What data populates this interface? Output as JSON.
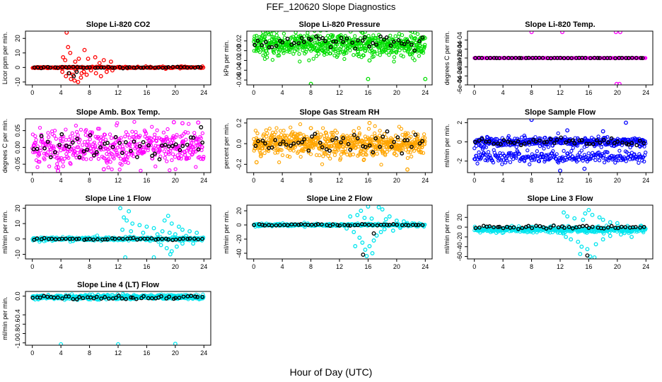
{
  "title": "FEF_120620  Slope Diagnostics",
  "xlabel": "Hour of Day (UTC)",
  "chart_data": [
    {
      "type": "scatter",
      "title": "Slope Li-820 CO2",
      "ylabel": "Licor ppm per min.",
      "xlim": [
        0,
        24
      ],
      "ylim": [
        -12,
        25
      ],
      "xticks": [
        0,
        4,
        8,
        12,
        16,
        20,
        24
      ],
      "yticks": [
        -10,
        0,
        10,
        20
      ],
      "yticklabels": [
        "-10",
        "0",
        "10",
        "20"
      ],
      "grid": false,
      "series": [
        {
          "name": "all",
          "color": "#ff0000",
          "baseline": 0,
          "spread": 0.3,
          "density": 300,
          "outliers": [
            [
              4.8,
              24
            ],
            [
              5,
              14
            ],
            [
              5.3,
              10
            ],
            [
              4.3,
              7
            ],
            [
              4.6,
              5
            ],
            [
              6,
              4
            ],
            [
              6.5,
              6
            ],
            [
              7.3,
              12
            ],
            [
              7.8,
              6
            ],
            [
              8.8,
              7
            ],
            [
              9.4,
              3
            ],
            [
              10,
              5
            ],
            [
              11,
              4
            ],
            [
              4.2,
              -3
            ],
            [
              4.7,
              -6
            ],
            [
              5.2,
              -4
            ],
            [
              5.4,
              -8
            ],
            [
              5.7,
              -5
            ],
            [
              6.1,
              -2
            ],
            [
              6.4,
              -10
            ],
            [
              6.8,
              -7
            ],
            [
              7.2,
              -3
            ],
            [
              7.6,
              -5
            ],
            [
              8.2,
              -2
            ],
            [
              8.9,
              -4
            ],
            [
              9.6,
              -6
            ],
            [
              10.4,
              -3
            ],
            [
              11.2,
              -2
            ],
            [
              5.9,
              -9
            ],
            [
              6.9,
              -4
            ]
          ]
        },
        {
          "name": "hourly",
          "color": "#000000",
          "baseline": 0,
          "spread": 0.2,
          "density": 48,
          "outliers": [
            [
              5.1,
              -4
            ],
            [
              5.8,
              -6
            ],
            [
              6.2,
              -3
            ],
            [
              20.3,
              0.4
            ]
          ]
        }
      ]
    },
    {
      "type": "scatter",
      "title": "Slope Li-820 Pressure",
      "ylabel": "kPa per min.",
      "xlim": [
        0,
        24
      ],
      "ylim": [
        -0.07,
        0.04
      ],
      "xticks": [
        0,
        4,
        8,
        12,
        16,
        20,
        24
      ],
      "yticks": [
        -0.06,
        -0.04,
        -0.02,
        0.0,
        0.02
      ],
      "yticklabels": [
        "-0.06",
        "-0.04",
        "-0.02",
        "0.00",
        "0.02"
      ],
      "grid": false,
      "series": [
        {
          "name": "all",
          "color": "#00dd00",
          "baseline": 0.012,
          "spread": 0.012,
          "density": 650,
          "outliers": [
            [
              8,
              -0.068
            ],
            [
              16,
              -0.058
            ],
            [
              24,
              -0.058
            ],
            [
              16.2,
              -0.02
            ]
          ]
        },
        {
          "name": "hourly",
          "color": "#000000",
          "baseline": 0.015,
          "spread": 0.008,
          "density": 48,
          "outliers": []
        }
      ]
    },
    {
      "type": "scatter",
      "title": "Slope Li-820 Temp.",
      "ylabel": "degrees C per min.",
      "xlim": [
        0,
        24
      ],
      "ylim": [
        -0.0006,
        0.0006
      ],
      "xticks": [
        0,
        4,
        8,
        12,
        16,
        20,
        24
      ],
      "yticks": [
        -0.0006,
        -0.0004,
        -0.0002,
        0,
        0.0002,
        0.0004
      ],
      "yticklabels": [
        "-6e-04",
        "-4e-04",
        "-2e-04",
        "0e+00",
        "2e-04",
        "4e-04"
      ],
      "grid": false,
      "series": [
        {
          "name": "all",
          "color": "#ff00ff",
          "baseline": 0,
          "spread": 5e-06,
          "density": 300,
          "outliers": [
            [
              8,
              0.00058
            ],
            [
              12.3,
              0.00058
            ],
            [
              19.8,
              0.00058
            ],
            [
              20.4,
              0.00058
            ],
            [
              19.9,
              -0.00058
            ],
            [
              20.3,
              -0.00058
            ],
            [
              0.2,
              0
            ],
            [
              20.2,
              0
            ]
          ]
        },
        {
          "name": "hourly",
          "color": "#000000",
          "baseline": 0,
          "spread": 2e-06,
          "density": 48,
          "outliers": []
        }
      ]
    },
    {
      "type": "scatter",
      "title": "Slope Amb. Box Temp.",
      "ylabel": "degrees C per min.",
      "xlim": [
        0,
        24
      ],
      "ylim": [
        -0.075,
        0.085
      ],
      "xticks": [
        0,
        4,
        8,
        12,
        16,
        20,
        24
      ],
      "yticks": [
        -0.05,
        0,
        0.05
      ],
      "yticklabels": [
        "-0.05",
        "0.00",
        "0.05"
      ],
      "grid": false,
      "series": [
        {
          "name": "all",
          "color": "#ff00ff",
          "baseline": 0,
          "spread": 0.028,
          "density": 480,
          "outliers": [
            [
              19.8,
              0.075
            ],
            [
              21,
              0.072
            ],
            [
              23.2,
              0.074
            ],
            [
              3.6,
              -0.07
            ],
            [
              10,
              -0.065
            ]
          ]
        },
        {
          "name": "hourly",
          "color": "#000000",
          "baseline": 0,
          "spread": 0.02,
          "density": 48,
          "outliers": [
            [
              23.6,
              0.06
            ]
          ]
        }
      ]
    },
    {
      "type": "scatter",
      "title": "Slope Gas Stream RH",
      "ylabel": "percent per min.",
      "xlim": [
        0,
        24
      ],
      "ylim": [
        -0.28,
        0.24
      ],
      "xticks": [
        0,
        4,
        8,
        12,
        16,
        20,
        24
      ],
      "yticks": [
        -0.2,
        0,
        0.2
      ],
      "yticklabels": [
        "-0.2",
        "0.0",
        "0.2"
      ],
      "grid": false,
      "series": [
        {
          "name": "all",
          "color": "#ffa500",
          "baseline": 0,
          "spread": 0.06,
          "density": 650,
          "outliers": [
            [
              0.4,
              -0.18
            ],
            [
              1,
              -0.12
            ],
            [
              16.2,
              0.2
            ],
            [
              21.5,
              -0.25
            ],
            [
              8,
              0.15
            ],
            [
              14,
              0.12
            ]
          ]
        },
        {
          "name": "hourly",
          "color": "#000000",
          "baseline": 0,
          "spread": 0.045,
          "density": 48,
          "outliers": []
        }
      ]
    },
    {
      "type": "scatter",
      "title": "Slope Sample Flow",
      "ylabel": "ml/min per min.",
      "xlim": [
        0,
        24
      ],
      "ylim": [
        -3.2,
        2.4
      ],
      "xticks": [
        0,
        4,
        8,
        12,
        16,
        20,
        24
      ],
      "yticks": [
        -2,
        0,
        2
      ],
      "yticklabels": [
        "-2",
        "0",
        "2"
      ],
      "grid": false,
      "series": [
        {
          "name": "all",
          "color": "#0000ff",
          "baseline": 0,
          "spread": 0.25,
          "density": 400,
          "outliers": [
            [
              8,
              2.3
            ],
            [
              21.2,
              2
            ],
            [
              12,
              -3
            ],
            [
              15.4,
              -2.8
            ],
            [
              13,
              1.2
            ],
            [
              18,
              1.1
            ]
          ]
        },
        {
          "name": "all_low_band",
          "color": "#0000ff",
          "baseline": -1.6,
          "spread": 0.3,
          "density": 250,
          "outliers": []
        },
        {
          "name": "hourly",
          "color": "#000000",
          "baseline": 0,
          "spread": 0.25,
          "density": 48,
          "outliers": []
        }
      ]
    },
    {
      "type": "scatter",
      "title": "Slope Line 1 Flow",
      "ylabel": "ml/min per min.",
      "xlim": [
        0,
        24
      ],
      "ylim": [
        -13,
        22
      ],
      "xticks": [
        0,
        4,
        8,
        12,
        16,
        20,
        24
      ],
      "yticks": [
        -10,
        0,
        10,
        20
      ],
      "yticklabels": [
        "-10",
        "0",
        "10",
        "20"
      ],
      "grid": false,
      "series": [
        {
          "name": "all",
          "color": "#00e5ee",
          "baseline": 0,
          "spread": 0.6,
          "density": 350,
          "outliers": [
            [
              12.3,
              20
            ],
            [
              13.5,
              18
            ],
            [
              12.8,
              14
            ],
            [
              13.2,
              12
            ],
            [
              14,
              10
            ],
            [
              15,
              9
            ],
            [
              16,
              8
            ],
            [
              17,
              7
            ],
            [
              18.5,
              12
            ],
            [
              19,
              15
            ],
            [
              19.5,
              10
            ],
            [
              20.5,
              8
            ],
            [
              21,
              6
            ],
            [
              22,
              5
            ],
            [
              23,
              4
            ],
            [
              12.6,
              6
            ],
            [
              13.8,
              5
            ],
            [
              15.5,
              4
            ],
            [
              17.5,
              3
            ],
            [
              18.2,
              5
            ],
            [
              19.2,
              4
            ],
            [
              20,
              3
            ],
            [
              21.5,
              2
            ],
            [
              18,
              -4
            ],
            [
              18.8,
              -6
            ],
            [
              19.5,
              -8
            ],
            [
              20.2,
              -5
            ],
            [
              21,
              -3
            ],
            [
              13,
              -12
            ],
            [
              17,
              -12
            ],
            [
              19.3,
              -10
            ],
            [
              22.5,
              -3
            ]
          ]
        },
        {
          "name": "hourly",
          "color": "#000000",
          "baseline": 0,
          "spread": 0.3,
          "density": 48,
          "outliers": []
        }
      ]
    },
    {
      "type": "scatter",
      "title": "Slope Line 2 Flow",
      "ylabel": "ml/min per min.",
      "xlim": [
        0,
        24
      ],
      "ylim": [
        -48,
        28
      ],
      "xticks": [
        0,
        4,
        8,
        12,
        16,
        20,
        24
      ],
      "yticks": [
        -40,
        -20,
        0,
        20
      ],
      "yticklabels": [
        "-40",
        "-20",
        "0",
        "20"
      ],
      "grid": false,
      "series": [
        {
          "name": "all",
          "color": "#00e5ee",
          "baseline": 0,
          "spread": 1,
          "density": 350,
          "outliers": [
            [
              16,
              26
            ],
            [
              17.5,
              25
            ],
            [
              18,
              22
            ],
            [
              15,
              20
            ],
            [
              14.5,
              14
            ],
            [
              13.5,
              12
            ],
            [
              15.5,
              10
            ],
            [
              16.5,
              9
            ],
            [
              18.5,
              8
            ],
            [
              19,
              12
            ],
            [
              20,
              6
            ],
            [
              21,
              5
            ],
            [
              13,
              -5
            ],
            [
              14,
              -10
            ],
            [
              14.8,
              -18
            ],
            [
              15.2,
              -25
            ],
            [
              15.6,
              -35
            ],
            [
              16.2,
              -30
            ],
            [
              16.8,
              -22
            ],
            [
              17.2,
              -15
            ],
            [
              17.8,
              -10
            ],
            [
              18.3,
              -6
            ],
            [
              19.5,
              -8
            ],
            [
              20.5,
              -4
            ],
            [
              15.8,
              -44
            ],
            [
              14.2,
              -30
            ],
            [
              16.6,
              -40
            ]
          ]
        },
        {
          "name": "hourly",
          "color": "#000000",
          "baseline": 0,
          "spread": 0.6,
          "density": 48,
          "outliers": [
            [
              15.3,
              -42
            ],
            [
              16.8,
              -12
            ]
          ]
        }
      ]
    },
    {
      "type": "scatter",
      "title": "Slope Line 3 Flow",
      "ylabel": "ml/min per min.",
      "xlim": [
        0,
        24
      ],
      "ylim": [
        -65,
        45
      ],
      "xticks": [
        0,
        4,
        8,
        12,
        16,
        20,
        24
      ],
      "yticks": [
        -60,
        -40,
        -20,
        0,
        20
      ],
      "yticklabels": [
        "-60",
        "-40",
        "-20",
        "0",
        "20"
      ],
      "grid": false,
      "series": [
        {
          "name": "all",
          "color": "#00e5ee",
          "baseline": -5,
          "spread": 3,
          "density": 450,
          "outliers": [
            [
              12.5,
              30
            ],
            [
              13,
              22
            ],
            [
              14,
              18
            ],
            [
              15.5,
              28
            ],
            [
              16,
              35
            ],
            [
              16.5,
              25
            ],
            [
              17.5,
              20
            ],
            [
              18,
              15
            ],
            [
              19,
              10
            ],
            [
              20,
              8
            ],
            [
              12.8,
              -20
            ],
            [
              13.5,
              -25
            ],
            [
              14.5,
              -30
            ],
            [
              15,
              -40
            ],
            [
              15.8,
              -45
            ],
            [
              16.2,
              -60
            ],
            [
              17,
              -35
            ],
            [
              18,
              -25
            ],
            [
              19,
              -18
            ],
            [
              20.5,
              -15
            ],
            [
              21,
              -12
            ],
            [
              22,
              -20
            ],
            [
              14.8,
              -55
            ],
            [
              16.8,
              -62
            ],
            [
              15.2,
              15
            ]
          ]
        },
        {
          "name": "hourly",
          "color": "#000000",
          "baseline": 0,
          "spread": 1.5,
          "density": 48,
          "outliers": [
            [
              15.8,
              -58
            ]
          ]
        }
      ]
    },
    {
      "type": "scatter",
      "title": "Slope Line 4 (LT) Flow",
      "ylabel": "ml/min per min.",
      "xlim": [
        0,
        24
      ],
      "ylim": [
        -1.05,
        0.1
      ],
      "xticks": [
        0,
        4,
        8,
        12,
        16,
        20,
        24
      ],
      "yticks": [
        -1.0,
        -0.8,
        -0.6,
        -0.4,
        0.0
      ],
      "yticklabels": [
        "-1.0",
        "-0.8",
        "-0.6",
        "-0.4",
        "0.0"
      ],
      "grid": false,
      "series": [
        {
          "name": "all",
          "color": "#00e5ee",
          "baseline": -0.02,
          "spread": 0.025,
          "density": 500,
          "outliers": [
            [
              4,
              -1.03
            ],
            [
              12,
              -1.03
            ],
            [
              20,
              -1.02
            ]
          ]
        },
        {
          "name": "hourly",
          "color": "#000000",
          "baseline": -0.03,
          "spread": 0.02,
          "density": 48,
          "outliers": []
        }
      ]
    }
  ]
}
